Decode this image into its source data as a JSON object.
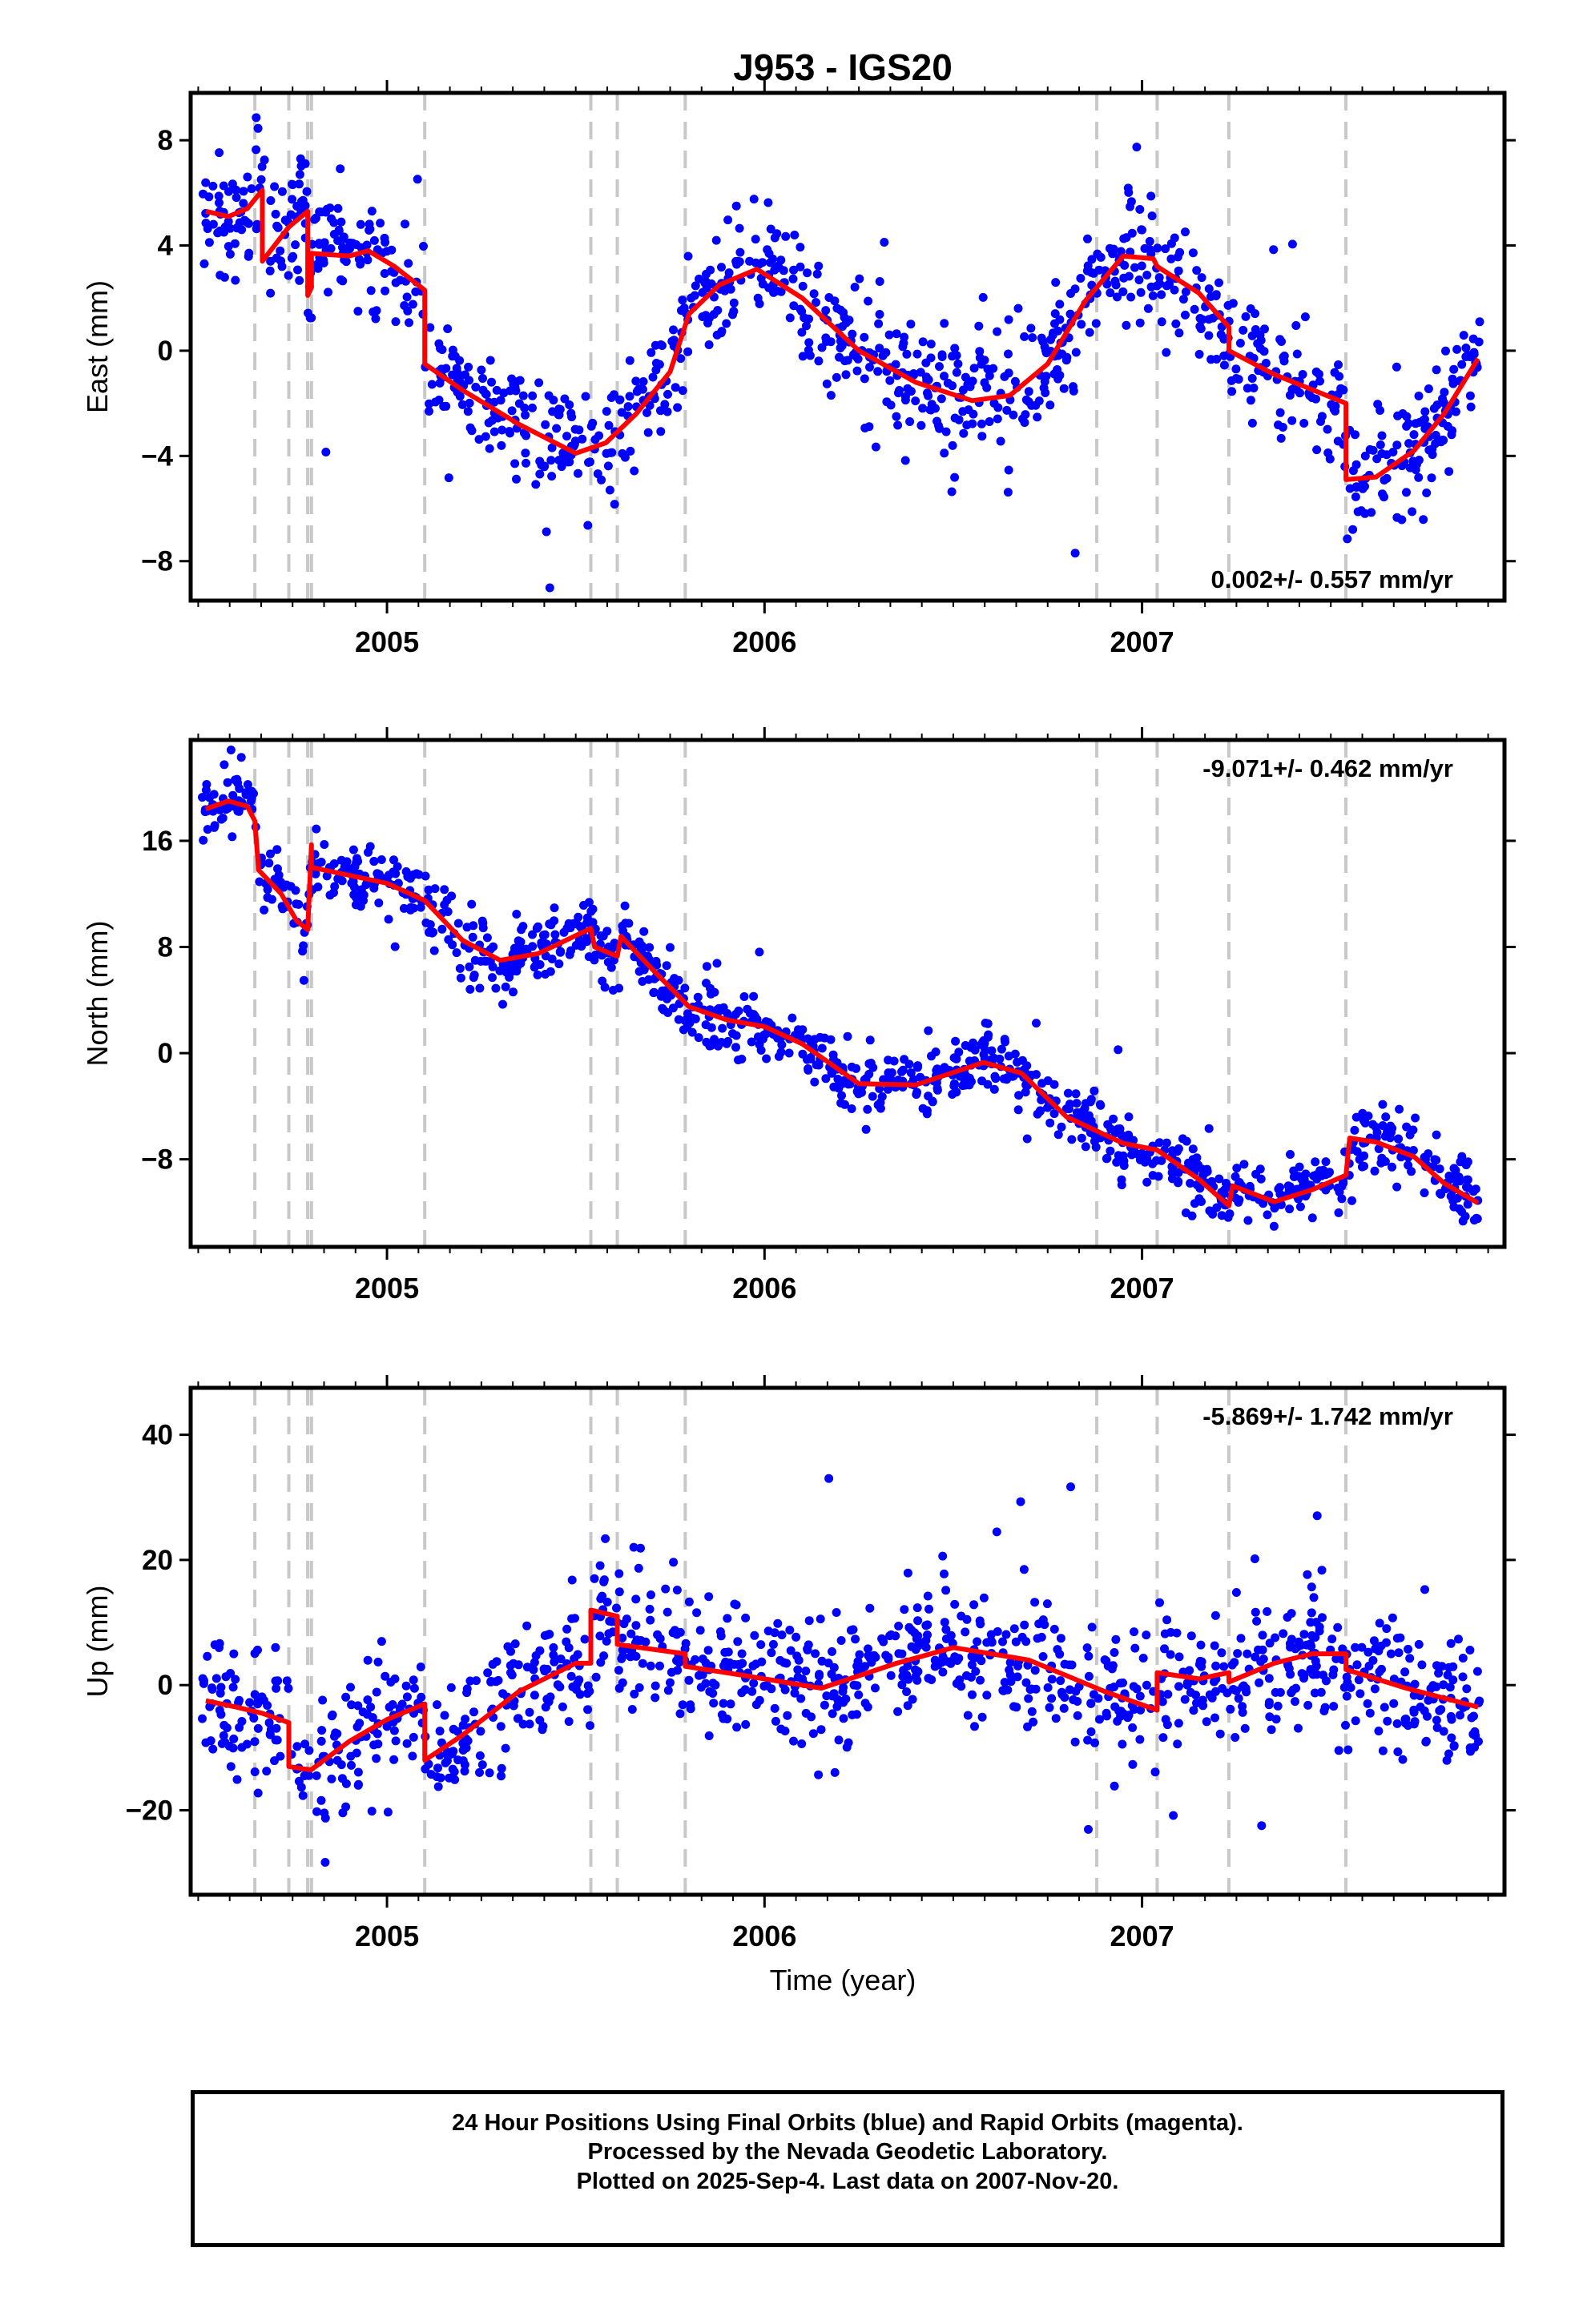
{
  "title": "J953 - IGS20",
  "xlabel": "Time (year)",
  "footer": {
    "line1": "24 Hour Positions Using Final Orbits (blue) and Rapid Orbits (magenta).",
    "line2": "Processed by the Nevada Geodetic Laboratory.",
    "line3": "Plotted on 2025-Sep-4. Last data on 2007-Nov-20."
  },
  "colors": {
    "points": "#0000ff",
    "model": "#ff0000",
    "breaks": "#c8c8c8"
  },
  "chart_data": [
    {
      "type": "scatter",
      "ylabel": "East (mm)",
      "rate_label": "0.002+/- 0.557 mm/yr",
      "xlim": [
        2004.48,
        2007.96
      ],
      "ylim": [
        -9.5,
        9.8
      ],
      "yticks": [
        -8,
        -4,
        0,
        4,
        8
      ],
      "yticklabels": [
        "−8",
        "−4",
        "0",
        "4",
        "8"
      ],
      "xticks": [
        2005,
        2006,
        2007
      ],
      "xticklabels": [
        "2005",
        "2006",
        "2007"
      ],
      "grid": false,
      "breaks": [
        2004.65,
        2004.74,
        2004.79,
        2004.8,
        2005.1,
        2005.54,
        2005.61,
        2005.79,
        2006.88,
        2007.04,
        2007.23,
        2007.54
      ],
      "model": {
        "x": [
          2004.52,
          2004.58,
          2004.63,
          2004.67,
          2004.67,
          2004.74,
          2004.79,
          2004.79,
          2004.8,
          2004.8,
          2004.9,
          2004.95,
          2005.02,
          2005.1,
          2005.1,
          2005.2,
          2005.35,
          2005.5,
          2005.58,
          2005.66,
          2005.75,
          2005.8,
          2005.88,
          2005.98,
          2006.1,
          2006.25,
          2006.4,
          2006.55,
          2006.65,
          2006.75,
          2006.85,
          2006.95,
          2007.03,
          2007.04,
          2007.15,
          2007.23,
          2007.23,
          2007.35,
          2007.54,
          2007.54,
          2007.62,
          2007.72,
          2007.8,
          2007.89
        ],
        "y": [
          5.3,
          5.1,
          5.4,
          6.1,
          3.4,
          4.7,
          5.3,
          2.1,
          2.4,
          3.7,
          3.6,
          3.8,
          3.2,
          2.3,
          -0.5,
          -1.5,
          -2.8,
          -3.9,
          -3.5,
          -2.4,
          -0.8,
          1.4,
          2.5,
          3.1,
          2.0,
          0.0,
          -1.2,
          -1.9,
          -1.7,
          -0.5,
          1.9,
          3.6,
          3.5,
          3.2,
          2.2,
          0.9,
          0.0,
          -0.9,
          -2.0,
          -4.9,
          -4.8,
          -3.8,
          -2.4,
          -0.3
        ]
      },
      "points": {
        "count": 1100,
        "scatter": 1.1,
        "outliers": 0.05
      }
    },
    {
      "type": "scatter",
      "ylabel": "North (mm)",
      "rate_label": "-9.071+/- 0.462 mm/yr",
      "xlim": [
        2004.48,
        2007.96
      ],
      "ylim": [
        -14.6,
        23.6
      ],
      "yticks": [
        -8,
        0,
        8,
        16
      ],
      "yticklabels": [
        "−8",
        "0",
        "8",
        "16"
      ],
      "xticks": [
        2005,
        2006,
        2007
      ],
      "xticklabels": [
        "2005",
        "2006",
        "2007"
      ],
      "grid": false,
      "breaks": [
        2004.65,
        2004.74,
        2004.79,
        2004.8,
        2005.1,
        2005.54,
        2005.61,
        2005.79,
        2006.88,
        2007.04,
        2007.23,
        2007.54
      ],
      "model": {
        "x": [
          2004.52,
          2004.58,
          2004.63,
          2004.65,
          2004.66,
          2004.72,
          2004.76,
          2004.79,
          2004.8,
          2004.8,
          2004.9,
          2005.0,
          2005.1,
          2005.2,
          2005.3,
          2005.4,
          2005.54,
          2005.55,
          2005.61,
          2005.62,
          2005.7,
          2005.8,
          2005.9,
          2006.0,
          2006.1,
          2006.25,
          2006.4,
          2006.58,
          2006.68,
          2006.8,
          2006.95,
          2007.04,
          2007.15,
          2007.23,
          2007.24,
          2007.35,
          2007.45,
          2007.54,
          2007.55,
          2007.62,
          2007.72,
          2007.8,
          2007.89
        ],
        "y": [
          18.4,
          19.0,
          18.6,
          17.5,
          13.8,
          12.0,
          10.0,
          9.3,
          15.7,
          14.0,
          13.4,
          12.8,
          11.5,
          8.5,
          7.0,
          7.5,
          9.4,
          8.0,
          7.3,
          8.8,
          6.4,
          3.5,
          2.5,
          2.0,
          0.7,
          -2.3,
          -2.4,
          -0.7,
          -1.5,
          -4.8,
          -6.8,
          -7.3,
          -9.5,
          -11.5,
          -10.0,
          -11.2,
          -10.3,
          -9.2,
          -6.4,
          -6.7,
          -7.8,
          -9.8,
          -11.3
        ]
      },
      "points": {
        "count": 1100,
        "scatter": 1.2,
        "outliers": 0.05
      }
    },
    {
      "type": "scatter",
      "ylabel": "Up (mm)",
      "rate_label": "-5.869+/- 1.742 mm/yr",
      "xlim": [
        2004.48,
        2007.96
      ],
      "ylim": [
        -33.5,
        47.5
      ],
      "yticks": [
        -20,
        0,
        20,
        40
      ],
      "yticklabels": [
        "−20",
        "0",
        "20",
        "40"
      ],
      "xticks": [
        2005,
        2006,
        2007
      ],
      "xticklabels": [
        "2005",
        "2006",
        "2007"
      ],
      "grid": false,
      "breaks": [
        2004.65,
        2004.74,
        2004.79,
        2004.8,
        2005.1,
        2005.54,
        2005.61,
        2005.79,
        2006.88,
        2007.04,
        2007.23,
        2007.54
      ],
      "model": {
        "x": [
          2004.52,
          2004.6,
          2004.67,
          2004.74,
          2004.74,
          2004.79,
          2004.8,
          2004.9,
          2005.0,
          2005.1,
          2005.1,
          2005.2,
          2005.35,
          2005.5,
          2005.54,
          2005.54,
          2005.61,
          2005.61,
          2005.79,
          2005.79,
          2005.95,
          2006.15,
          2006.35,
          2006.5,
          2006.7,
          2006.9,
          2007.04,
          2007.04,
          2007.15,
          2007.23,
          2007.23,
          2007.35,
          2007.45,
          2007.54,
          2007.54,
          2007.7,
          2007.89
        ],
        "y": [
          -2.5,
          -3.5,
          -4.5,
          -6.0,
          -13.0,
          -13.5,
          -13.5,
          -9.0,
          -5.5,
          -3.0,
          -12.0,
          -8.0,
          -1.0,
          3.5,
          3.5,
          12.0,
          11.0,
          6.5,
          5.0,
          3.0,
          1.5,
          -0.5,
          3.5,
          6.0,
          4.0,
          -1.0,
          -4.0,
          2.0,
          1.0,
          2.0,
          0.5,
          3.5,
          5.0,
          5.0,
          2.5,
          -0.5,
          -3.5
        ]
      },
      "points": {
        "count": 1100,
        "scatter": 5.0,
        "outliers": 0.04
      }
    }
  ]
}
